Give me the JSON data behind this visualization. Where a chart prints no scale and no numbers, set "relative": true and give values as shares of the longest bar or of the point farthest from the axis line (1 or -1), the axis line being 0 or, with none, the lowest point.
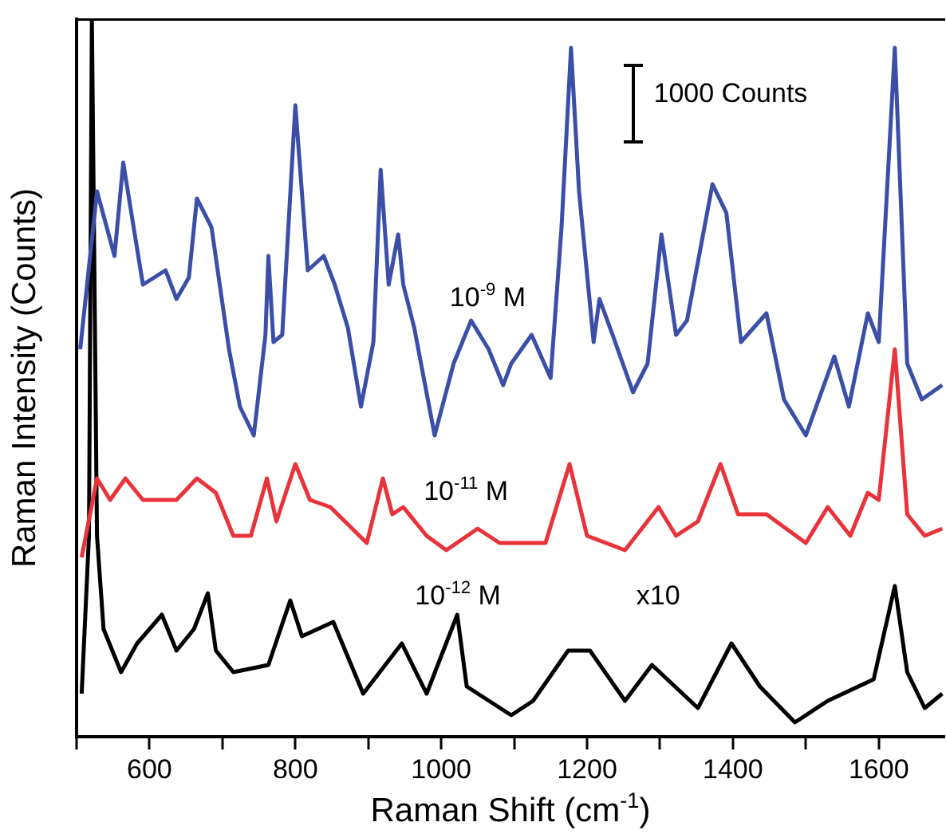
{
  "chart_data": {
    "type": "line",
    "relative": true,
    "xlabel": "Raman Shift (cm$^{-1}$)",
    "ylabel": "Raman Intensity (Counts)",
    "xlim": [
      500,
      1690
    ],
    "xticks": [
      {
        "value": 500,
        "label": null
      },
      600,
      {
        "value": 700,
        "label": null
      },
      800,
      {
        "value": 900,
        "label": null
      },
      1000,
      {
        "value": 1100,
        "label": null
      },
      1200,
      {
        "value": 1300,
        "label": null
      },
      1400,
      {
        "value": 1500,
        "label": null
      },
      1600
    ],
    "grid": false,
    "legend": false,
    "marker": "none",
    "line_style": "solid",
    "annotations": [
      "1000 Counts",
      "x10"
    ],
    "series": [
      {
        "name": "10$^{-9}$ M",
        "color": "#3b4fa8",
        "x": [
          505,
          528,
          552,
          564,
          583,
          591,
          622,
          637,
          654,
          665,
          685,
          709,
          724,
          743,
          759,
          763,
          770,
          782,
          800,
          817,
          839,
          854,
          872,
          890,
          907,
          917,
          928,
          941,
          948,
          963,
          991,
          1017,
          1041,
          1065,
          1085,
          1096,
          1124,
          1150,
          1165,
          1178,
          1189,
          1209,
          1217,
          1235,
          1263,
          1283,
          1302,
          1322,
          1337,
          1372,
          1391,
          1411,
          1446,
          1470,
          1500,
          1539,
          1559,
          1585,
          1600,
          1622,
          1639,
          1659,
          1687
        ],
        "values": [
          0.54,
          0.76,
          0.67,
          0.8,
          0.68,
          0.63,
          0.65,
          0.61,
          0.64,
          0.75,
          0.71,
          0.54,
          0.46,
          0.42,
          0.56,
          0.67,
          0.55,
          0.56,
          0.88,
          0.65,
          0.67,
          0.63,
          0.57,
          0.46,
          0.55,
          0.79,
          0.63,
          0.7,
          0.63,
          0.57,
          0.42,
          0.52,
          0.58,
          0.54,
          0.49,
          0.52,
          0.56,
          0.5,
          0.71,
          0.96,
          0.76,
          0.55,
          0.61,
          0.56,
          0.48,
          0.52,
          0.7,
          0.56,
          0.58,
          0.77,
          0.73,
          0.55,
          0.59,
          0.47,
          0.42,
          0.53,
          0.46,
          0.59,
          0.55,
          0.96,
          0.52,
          0.47,
          0.49
        ]
      },
      {
        "name": "10$^{-11}$ M",
        "color": "#e8333a",
        "x": [
          507,
          528,
          546,
          567,
          591,
          637,
          665,
          691,
          715,
          739,
          761,
          774,
          800,
          820,
          848,
          898,
          920,
          933,
          948,
          980,
          1007,
          1050,
          1080,
          1143,
          1176,
          1200,
          1252,
          1298,
          1322,
          1352,
          1383,
          1407,
          1446,
          1500,
          1530,
          1561,
          1585,
          1600,
          1622,
          1639,
          1663,
          1687
        ],
        "values": [
          0.25,
          0.36,
          0.33,
          0.36,
          0.33,
          0.33,
          0.36,
          0.34,
          0.28,
          0.28,
          0.36,
          0.3,
          0.38,
          0.33,
          0.32,
          0.27,
          0.36,
          0.31,
          0.32,
          0.28,
          0.26,
          0.29,
          0.27,
          0.27,
          0.38,
          0.28,
          0.26,
          0.32,
          0.28,
          0.3,
          0.38,
          0.31,
          0.31,
          0.27,
          0.32,
          0.28,
          0.34,
          0.33,
          0.54,
          0.31,
          0.28,
          0.29
        ]
      },
      {
        "name": "10$^{-12}$ M",
        "color": "#000000",
        "x": [
          507,
          517,
          521,
          528,
          537,
          561,
          583,
          617,
          637,
          661,
          680,
          691,
          715,
          763,
          793,
          809,
          852,
          893,
          946,
          980,
          1022,
          1035,
          1096,
          1126,
          1174,
          1204,
          1252,
          1289,
          1352,
          1398,
          1437,
          1485,
          1530,
          1593,
          1622,
          1639,
          1663,
          1687
        ],
        "values": [
          0.06,
          0.28,
          1.0,
          0.28,
          0.15,
          0.09,
          0.13,
          0.17,
          0.12,
          0.15,
          0.2,
          0.12,
          0.09,
          0.1,
          0.19,
          0.14,
          0.16,
          0.06,
          0.13,
          0.06,
          0.17,
          0.07,
          0.03,
          0.05,
          0.12,
          0.12,
          0.05,
          0.1,
          0.04,
          0.13,
          0.07,
          0.02,
          0.05,
          0.08,
          0.21,
          0.09,
          0.04,
          0.06
        ]
      }
    ]
  }
}
